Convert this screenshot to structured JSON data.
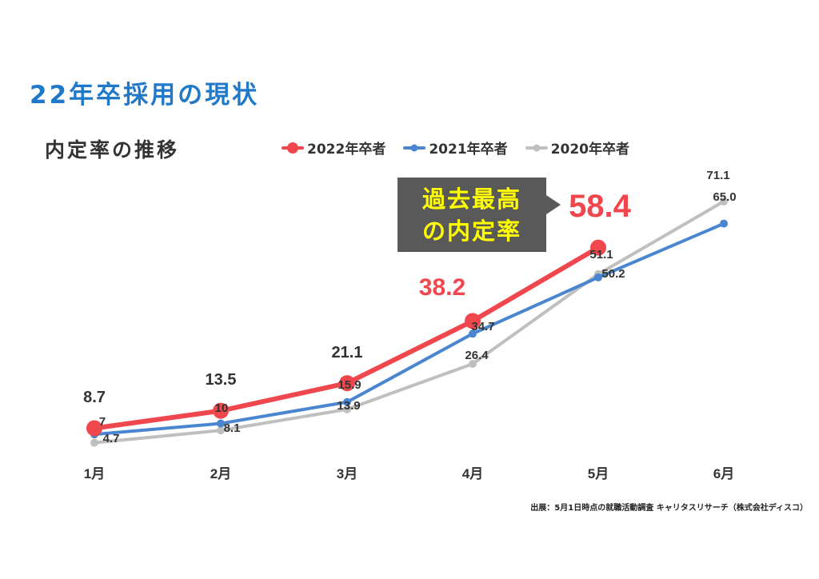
{
  "title": "22年卒採用の現状",
  "subtitle": "内定率の推移",
  "callout": {
    "line1": "過去最高",
    "line2": "の内定率"
  },
  "source": "出展：5月1日時点の就職活動調査 キャリタスリサーチ（株式会社ディスコ）",
  "chart_data": {
    "type": "line",
    "categories": [
      "1月",
      "2月",
      "3月",
      "4月",
      "5月",
      "6月"
    ],
    "ylim": [
      0,
      80
    ],
    "grid": false,
    "legend_position": "top",
    "series": [
      {
        "name": "2022年卒者",
        "color": "#f0474e",
        "values": [
          8.7,
          13.5,
          21.1,
          38.2,
          58.4,
          null
        ],
        "labels": [
          "8.7",
          "13.5",
          "21.1",
          "38.2",
          "58.4",
          ""
        ]
      },
      {
        "name": "2021年卒者",
        "color": "#4a86cf",
        "values": [
          7,
          10,
          15.9,
          34.7,
          50.2,
          65.0
        ],
        "labels": [
          "7",
          "10",
          "15.9",
          "34.7",
          "50.2",
          "65.0"
        ]
      },
      {
        "name": "2020年卒者",
        "color": "#bfbfbf",
        "values": [
          4.7,
          8.1,
          13.9,
          26.4,
          51.1,
          71.1
        ],
        "labels": [
          "4.7",
          "8.1",
          "13.9",
          "26.4",
          "51.1",
          "71.1"
        ]
      }
    ]
  }
}
